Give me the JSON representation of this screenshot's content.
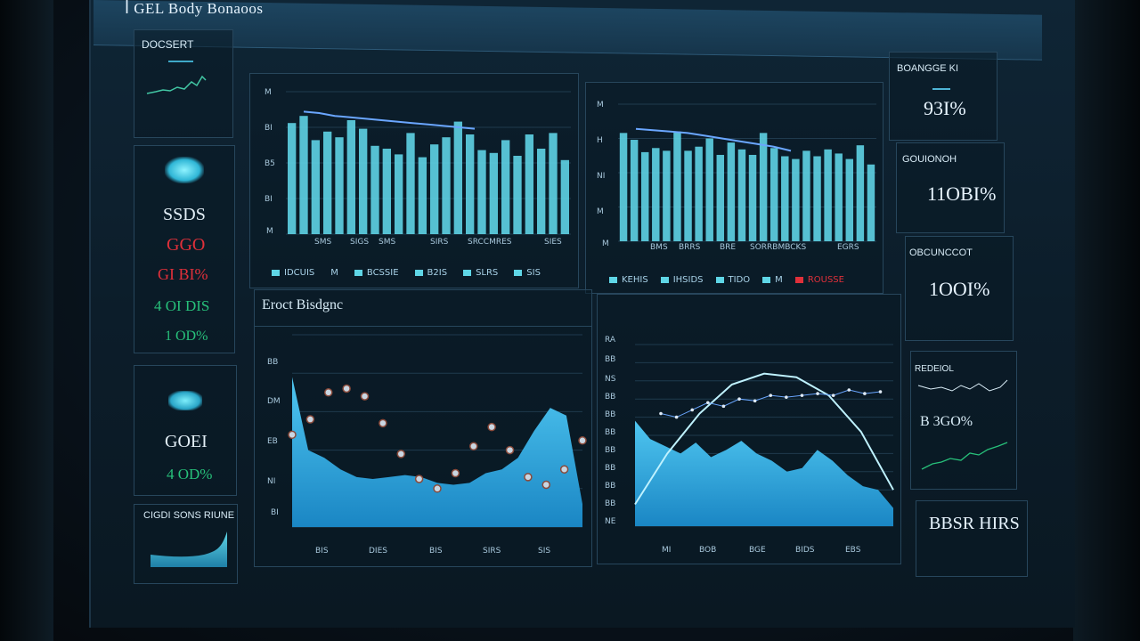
{
  "window": {
    "title": "ꟾ GEL Body Bonaoos"
  },
  "left_panels": {
    "top": {
      "label": "DOCSERT"
    },
    "stats": [
      {
        "value": "SSDS",
        "color": "#e2eef6"
      },
      {
        "value": "GGO",
        "color": "#e0303a"
      },
      {
        "value": "GI BI%",
        "color": "#e0303a"
      },
      {
        "value": "4 OI DIS",
        "color": "#27c07a"
      },
      {
        "value": "1 OD%",
        "color": "#27c07a"
      }
    ],
    "mid": {
      "value1": "GOEI",
      "value2": "4 OD%"
    },
    "bottom": {
      "label": "CIGDI SONS RIUNE"
    }
  },
  "bar_chart_a": {
    "y_ticks": [
      "M",
      "BI",
      "B5",
      "BI",
      "M"
    ],
    "x_ticks": [
      "SMS",
      "SIGS",
      "SMS",
      "SIRS",
      "SRCCMRES",
      "SIES"
    ],
    "legend": [
      "IDCUIS",
      "M",
      "BCSSIE",
      "B2IS",
      "SLRS",
      "SIS"
    ]
  },
  "bar_chart_b": {
    "y_ticks": [
      "M",
      "H",
      "NI",
      "M",
      "M"
    ],
    "x_ticks": [
      "BMS",
      "BRRS",
      "BRE",
      "SORRBMBCKS",
      "EGRS"
    ],
    "legend": [
      "KEHIS",
      "IHSIDS",
      "TIDO",
      "M",
      "ROUSSE"
    ]
  },
  "line_panel": {
    "title": "Eroct Bisdgnc",
    "y_ticks": [
      "BB",
      "DM",
      "EB",
      "NI",
      "BI"
    ],
    "x_ticks": [
      "BIS",
      "DIES",
      "BIS",
      "SIRS",
      "SIS"
    ]
  },
  "curve_panel": {
    "y_ticks": [
      "RA",
      "BB",
      "NS",
      "BB",
      "BB",
      "BB",
      "BB",
      "BB",
      "BB",
      "BB",
      "NE"
    ],
    "x_ticks": [
      "MI",
      "BOB",
      "BGE",
      "BIDS",
      "EBS"
    ]
  },
  "right_panels": [
    {
      "label": "BOANGGE KI",
      "value": "93I%"
    },
    {
      "label": "GOUIONOH",
      "value": "11OBI%"
    },
    {
      "label": "OBCUNCCOT",
      "value": "1OOI%"
    }
  ],
  "mini_right": {
    "label": "REDEIOL",
    "value": "B 3GO%"
  },
  "bottom_right": {
    "value": "BBSR HIRS"
  },
  "colors": {
    "accent": "#56d4e6",
    "bar": "#5ed3e4",
    "line": "#6aa6ff",
    "red": "#e0303a",
    "green": "#27c07a"
  },
  "chart_data": [
    {
      "type": "bar",
      "categories": [
        "1",
        "2",
        "3",
        "4",
        "5",
        "6",
        "7",
        "8",
        "9",
        "10",
        "11",
        "12",
        "13",
        "14",
        "15",
        "16",
        "17",
        "18",
        "19",
        "20",
        "21",
        "22",
        "23",
        "24"
      ],
      "values": [
        78,
        83,
        66,
        72,
        68,
        80,
        74,
        62,
        60,
        56,
        71,
        54,
        63,
        68,
        79,
        70,
        59,
        57,
        66,
        55,
        70,
        60,
        71,
        52
      ],
      "line": [
        86,
        85,
        83,
        82,
        81,
        80,
        79,
        78,
        77,
        76,
        75,
        74
      ]
    },
    {
      "type": "bar",
      "categories": [
        "1",
        "2",
        "3",
        "4",
        "5",
        "6",
        "7",
        "8",
        "9",
        "10",
        "11",
        "12",
        "13",
        "14",
        "15",
        "16",
        "17",
        "18",
        "19",
        "20",
        "21",
        "22",
        "23",
        "24"
      ],
      "values": [
        79,
        74,
        65,
        68,
        66,
        80,
        66,
        69,
        75,
        63,
        72,
        67,
        63,
        79,
        68,
        62,
        60,
        66,
        62,
        67,
        64,
        60,
        70,
        56
      ],
      "line": [
        82,
        81,
        80,
        79,
        77,
        75,
        73,
        71,
        69,
        66
      ]
    },
    {
      "type": "area",
      "area": [
        78,
        40,
        36,
        30,
        26,
        25,
        26,
        27,
        26,
        23,
        22,
        23,
        28,
        30,
        36,
        50,
        62,
        58,
        12
      ],
      "points": [
        48,
        56,
        70,
        72,
        68,
        54,
        38,
        25,
        20,
        28,
        42,
        52,
        40,
        26,
        22,
        30,
        45
      ]
    },
    {
      "type": "area",
      "arc": [
        12,
        40,
        62,
        78,
        84,
        82,
        72,
        52,
        20
      ],
      "area": [
        58,
        48,
        44,
        40,
        46,
        38,
        42,
        47,
        40,
        36,
        30,
        32,
        42,
        36,
        28,
        22,
        20,
        10
      ],
      "points": [
        62,
        60,
        64,
        68,
        66,
        70,
        69,
        72,
        71,
        72,
        73,
        72,
        75,
        73,
        74
      ]
    }
  ]
}
